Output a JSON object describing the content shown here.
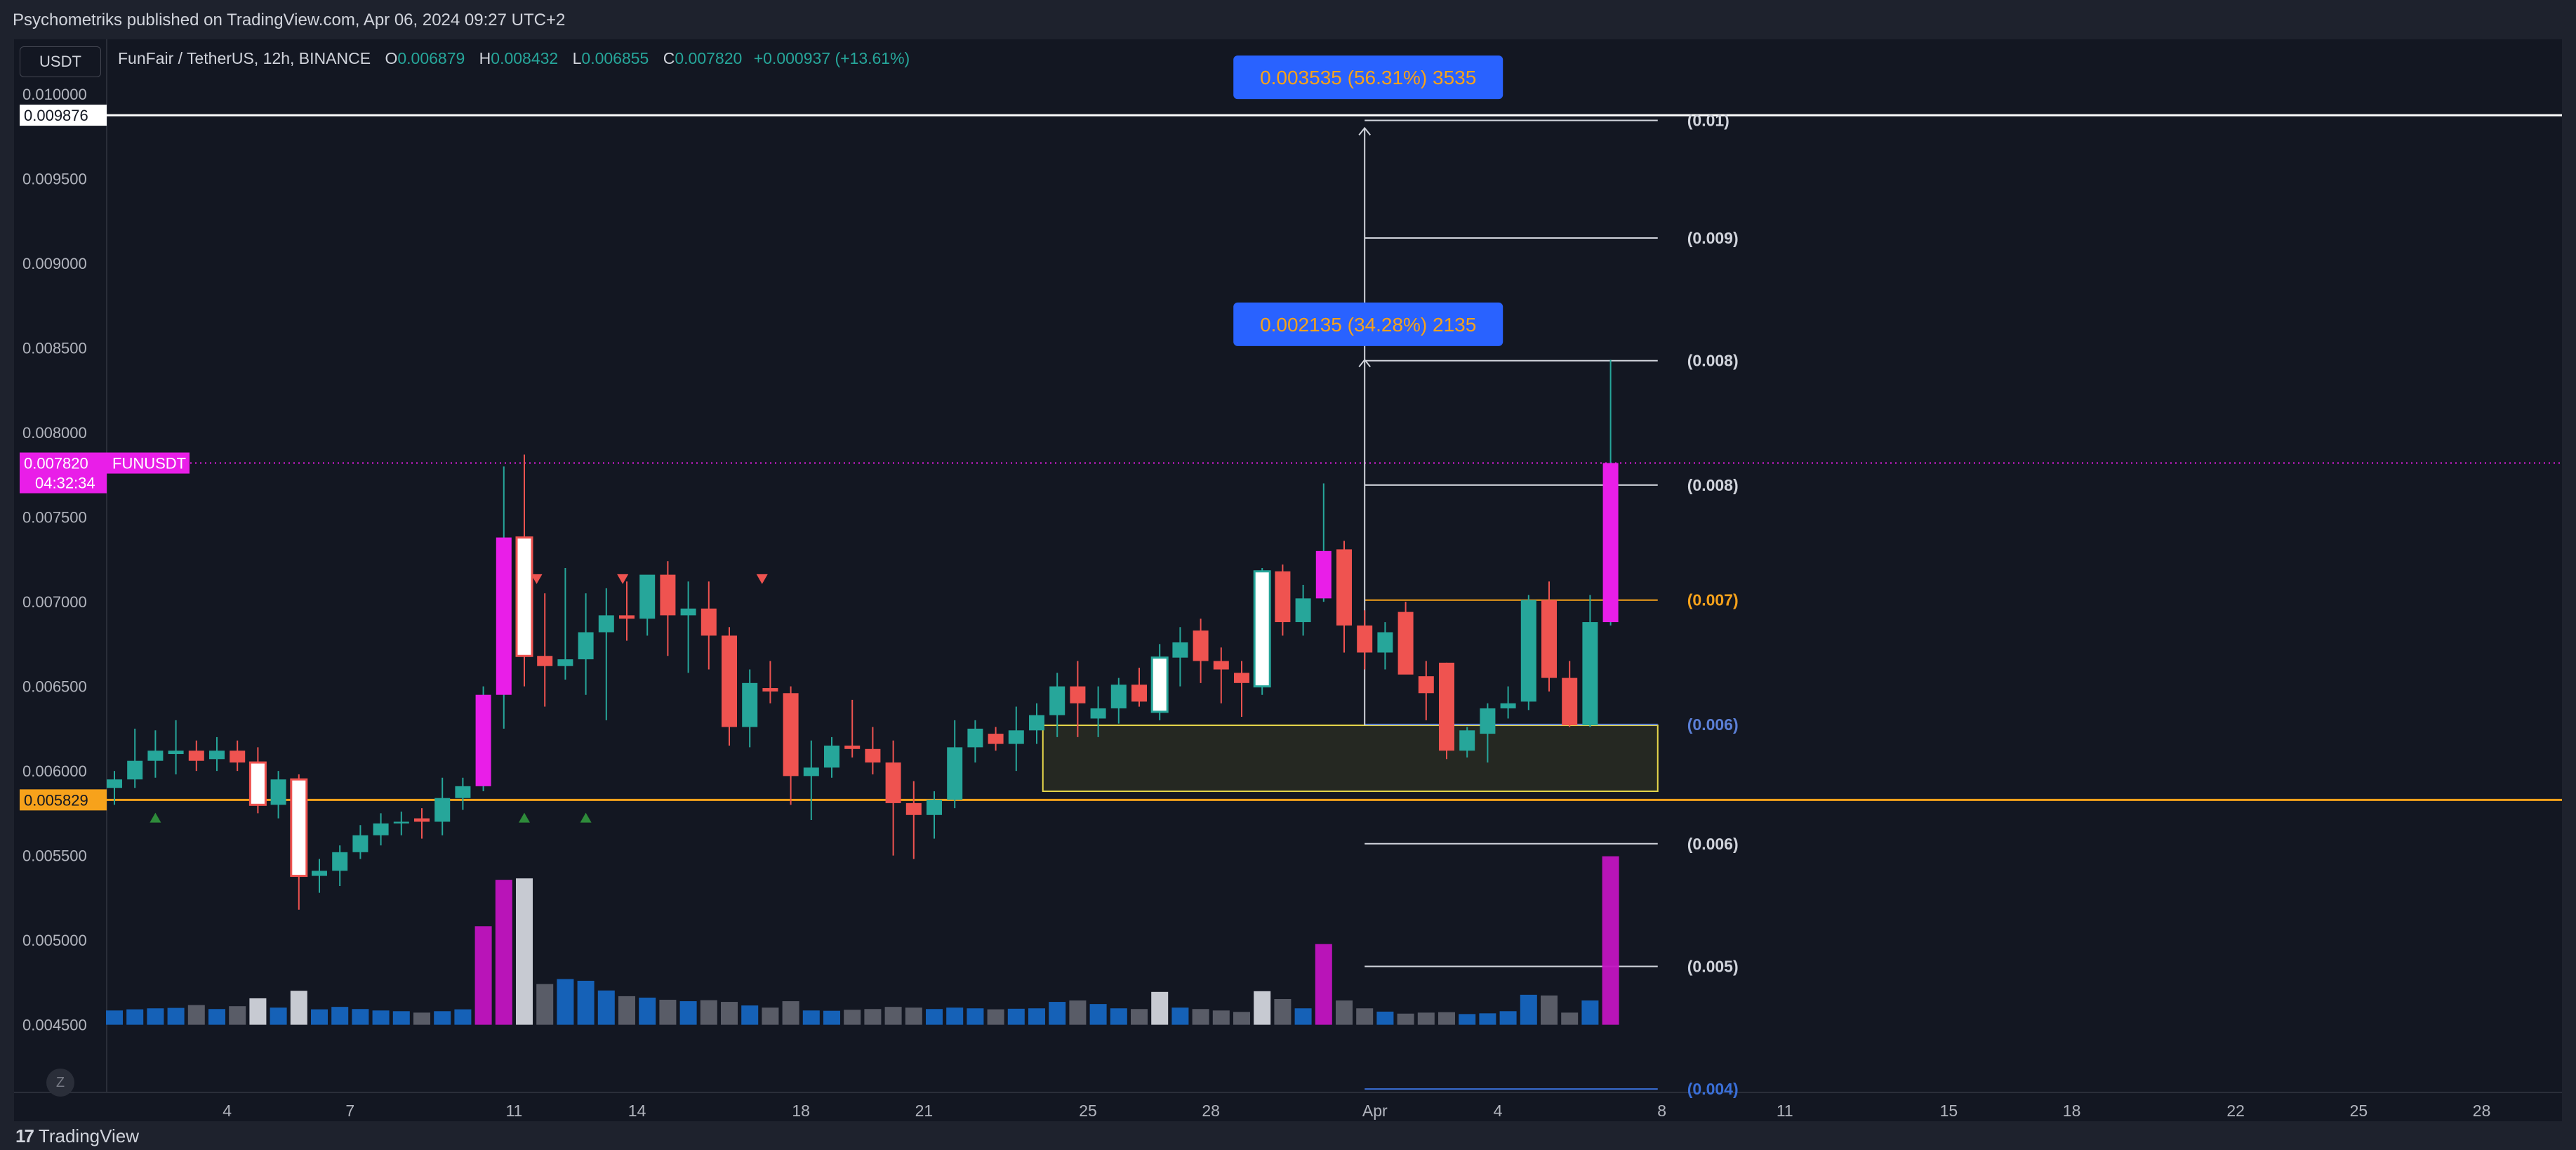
{
  "header": {
    "caption": "Psychometriks published on TradingView.com, Apr 06, 2024 09:27 UTC+2"
  },
  "legend": {
    "symbol": "FunFair / TetherUS, 12h, BINANCE",
    "open_label": "O",
    "open": "0.006879",
    "high_label": "H",
    "high": "0.008432",
    "low_label": "L",
    "low": "0.006855",
    "close_label": "C",
    "close": "0.007820",
    "change": "+0.000937 (+13.61%)"
  },
  "currency_tag": "USDT",
  "footer": {
    "brand": "TradingView"
  },
  "reset_button": "Z",
  "price_tags": {
    "top_line": "0.009876",
    "current_price": "0.007820",
    "current_symbol": "FUNUSDT",
    "countdown": "04:32:34",
    "support_line": "0.005829"
  },
  "measure_boxes": [
    {
      "text": "0.003535 (56.31%) 3535"
    },
    {
      "text": "0.002135 (34.28%) 2135"
    }
  ],
  "colors": {
    "up": "#26a69a",
    "down": "#ef5350",
    "volume_up": "#1565c0",
    "volume_down": "#5d606b",
    "highlight": "#e91ee8",
    "support": "#f7a21b",
    "current": "#e91ee8"
  },
  "chart_data": {
    "type": "candlestick",
    "timeframe": "12h",
    "ylim": [
      0.0041,
      0.0102
    ],
    "y_ticks": [
      "0.010000",
      "0.009500",
      "0.009000",
      "0.008500",
      "0.008000",
      "0.007500",
      "0.007000",
      "0.006500",
      "0.006000",
      "0.005500",
      "0.005000",
      "0.004500"
    ],
    "x_ticks": [
      {
        "label": "4",
        "idx": 5.5
      },
      {
        "label": "7",
        "idx": 11.5
      },
      {
        "label": "11",
        "idx": 19.5
      },
      {
        "label": "14",
        "idx": 25.5
      },
      {
        "label": "18",
        "idx": 33.5
      },
      {
        "label": "21",
        "idx": 39.5
      },
      {
        "label": "25",
        "idx": 47.5
      },
      {
        "label": "28",
        "idx": 53.5
      },
      {
        "label": "Apr",
        "idx": 61.5
      },
      {
        "label": "4",
        "idx": 67.5
      },
      {
        "label": "8",
        "idx": 75.5
      },
      {
        "label": "11",
        "idx": 81.5
      },
      {
        "label": "15",
        "idx": 89.5
      },
      {
        "label": "18",
        "idx": 95.5
      },
      {
        "label": "22",
        "idx": 103.5
      },
      {
        "label": "25",
        "idx": 109.5
      },
      {
        "label": "28",
        "idx": 115.5
      }
    ],
    "candles": [
      {
        "o": 0.0059,
        "h": 0.006,
        "l": 0.0058,
        "c": 0.00595,
        "v": 100
      },
      {
        "o": 0.00595,
        "h": 0.00625,
        "l": 0.0059,
        "c": 0.00606,
        "v": 108
      },
      {
        "o": 0.00606,
        "h": 0.00624,
        "l": 0.00596,
        "c": 0.00612,
        "v": 115
      },
      {
        "o": 0.0061,
        "h": 0.0063,
        "l": 0.00598,
        "c": 0.00612,
        "v": 118
      },
      {
        "o": 0.00612,
        "h": 0.00618,
        "l": 0.006,
        "c": 0.00606,
        "v": 138
      },
      {
        "o": 0.00607,
        "h": 0.0062,
        "l": 0.006,
        "c": 0.00612,
        "v": 110
      },
      {
        "o": 0.00612,
        "h": 0.00618,
        "l": 0.006,
        "c": 0.00605,
        "v": 130
      },
      {
        "o": 0.00605,
        "h": 0.00614,
        "l": 0.00575,
        "c": 0.0058,
        "v": 185,
        "hl": "white"
      },
      {
        "o": 0.0058,
        "h": 0.006,
        "l": 0.00572,
        "c": 0.00595,
        "v": 120
      },
      {
        "o": 0.00595,
        "h": 0.00598,
        "l": 0.00518,
        "c": 0.00538,
        "v": 238,
        "hl": "white"
      },
      {
        "o": 0.00538,
        "h": 0.00548,
        "l": 0.00528,
        "c": 0.00541,
        "v": 108
      },
      {
        "o": 0.00541,
        "h": 0.00556,
        "l": 0.00532,
        "c": 0.00552,
        "v": 125
      },
      {
        "o": 0.00552,
        "h": 0.00568,
        "l": 0.00548,
        "c": 0.00562,
        "v": 110
      },
      {
        "o": 0.00562,
        "h": 0.00575,
        "l": 0.00556,
        "c": 0.00569,
        "v": 100
      },
      {
        "o": 0.00569,
        "h": 0.00576,
        "l": 0.00562,
        "c": 0.0057,
        "v": 95
      },
      {
        "o": 0.00572,
        "h": 0.00578,
        "l": 0.0056,
        "c": 0.0057,
        "v": 85
      },
      {
        "o": 0.0057,
        "h": 0.00596,
        "l": 0.00562,
        "c": 0.00584,
        "v": 95
      },
      {
        "o": 0.00584,
        "h": 0.00596,
        "l": 0.00577,
        "c": 0.00591,
        "v": 108
      },
      {
        "o": 0.00591,
        "h": 0.0065,
        "l": 0.00588,
        "c": 0.00645,
        "v": 690,
        "hl": "magenta"
      },
      {
        "o": 0.00645,
        "h": 0.0078,
        "l": 0.00625,
        "c": 0.00738,
        "v": 1015,
        "hl": "magenta"
      },
      {
        "o": 0.00738,
        "h": 0.00787,
        "l": 0.0065,
        "c": 0.00668,
        "v": 1025,
        "hl": "white"
      },
      {
        "o": 0.00668,
        "h": 0.00705,
        "l": 0.00638,
        "c": 0.00662,
        "v": 285
      },
      {
        "o": 0.00662,
        "h": 0.0072,
        "l": 0.00654,
        "c": 0.00666,
        "v": 320
      },
      {
        "o": 0.00666,
        "h": 0.00705,
        "l": 0.00645,
        "c": 0.00682,
        "v": 308
      },
      {
        "o": 0.00682,
        "h": 0.00708,
        "l": 0.0063,
        "c": 0.00692,
        "v": 240
      },
      {
        "o": 0.00692,
        "h": 0.00712,
        "l": 0.00677,
        "c": 0.0069,
        "v": 200
      },
      {
        "o": 0.0069,
        "h": 0.0071,
        "l": 0.0068,
        "c": 0.00716,
        "v": 190
      },
      {
        "o": 0.00716,
        "h": 0.00724,
        "l": 0.00668,
        "c": 0.00692,
        "v": 175
      },
      {
        "o": 0.00692,
        "h": 0.00712,
        "l": 0.00658,
        "c": 0.00696,
        "v": 165
      },
      {
        "o": 0.00696,
        "h": 0.00712,
        "l": 0.0066,
        "c": 0.0068,
        "v": 172
      },
      {
        "o": 0.0068,
        "h": 0.00685,
        "l": 0.00615,
        "c": 0.00626,
        "v": 160
      },
      {
        "o": 0.00626,
        "h": 0.0066,
        "l": 0.00614,
        "c": 0.00652,
        "v": 135
      },
      {
        "o": 0.00649,
        "h": 0.00665,
        "l": 0.0064,
        "c": 0.00647,
        "v": 120
      },
      {
        "o": 0.00646,
        "h": 0.0065,
        "l": 0.0058,
        "c": 0.00597,
        "v": 165
      },
      {
        "o": 0.00597,
        "h": 0.00618,
        "l": 0.00571,
        "c": 0.00602,
        "v": 100
      },
      {
        "o": 0.00602,
        "h": 0.0062,
        "l": 0.00596,
        "c": 0.00615,
        "v": 98
      },
      {
        "o": 0.00615,
        "h": 0.00642,
        "l": 0.00608,
        "c": 0.00613,
        "v": 105
      },
      {
        "o": 0.00613,
        "h": 0.00626,
        "l": 0.00598,
        "c": 0.00605,
        "v": 110
      },
      {
        "o": 0.00605,
        "h": 0.00618,
        "l": 0.0055,
        "c": 0.00581,
        "v": 125
      },
      {
        "o": 0.00581,
        "h": 0.00594,
        "l": 0.00548,
        "c": 0.00574,
        "v": 120
      },
      {
        "o": 0.00574,
        "h": 0.00588,
        "l": 0.0056,
        "c": 0.00583,
        "v": 110
      },
      {
        "o": 0.00583,
        "h": 0.0063,
        "l": 0.00578,
        "c": 0.00614,
        "v": 120
      },
      {
        "o": 0.00614,
        "h": 0.0063,
        "l": 0.00605,
        "c": 0.00625,
        "v": 115
      },
      {
        "o": 0.00622,
        "h": 0.00626,
        "l": 0.00612,
        "c": 0.00616,
        "v": 108
      },
      {
        "o": 0.00616,
        "h": 0.00638,
        "l": 0.006,
        "c": 0.00624,
        "v": 112
      },
      {
        "o": 0.00624,
        "h": 0.0064,
        "l": 0.00616,
        "c": 0.00633,
        "v": 115
      },
      {
        "o": 0.00633,
        "h": 0.00658,
        "l": 0.0062,
        "c": 0.0065,
        "v": 160
      },
      {
        "o": 0.0065,
        "h": 0.00665,
        "l": 0.0062,
        "c": 0.0064,
        "v": 170
      },
      {
        "o": 0.00631,
        "h": 0.0065,
        "l": 0.0062,
        "c": 0.00637,
        "v": 145
      },
      {
        "o": 0.00637,
        "h": 0.00655,
        "l": 0.00628,
        "c": 0.00651,
        "v": 115
      },
      {
        "o": 0.00651,
        "h": 0.00661,
        "l": 0.00638,
        "c": 0.00641,
        "v": 110
      },
      {
        "o": 0.00635,
        "h": 0.00675,
        "l": 0.0063,
        "c": 0.00667,
        "v": 230,
        "hl": "white"
      },
      {
        "o": 0.00667,
        "h": 0.00685,
        "l": 0.0065,
        "c": 0.00676,
        "v": 120
      },
      {
        "o": 0.00683,
        "h": 0.0069,
        "l": 0.00652,
        "c": 0.00665,
        "v": 110
      },
      {
        "o": 0.00665,
        "h": 0.00673,
        "l": 0.0064,
        "c": 0.0066,
        "v": 100
      },
      {
        "o": 0.00658,
        "h": 0.00665,
        "l": 0.00632,
        "c": 0.00652,
        "v": 90
      },
      {
        "o": 0.0065,
        "h": 0.0072,
        "l": 0.00645,
        "c": 0.00718,
        "v": 235,
        "hl": "white"
      },
      {
        "o": 0.00718,
        "h": 0.00722,
        "l": 0.0068,
        "c": 0.00688,
        "v": 180
      },
      {
        "o": 0.00688,
        "h": 0.0071,
        "l": 0.0068,
        "c": 0.00702,
        "v": 115
      },
      {
        "o": 0.00702,
        "h": 0.0077,
        "l": 0.007,
        "c": 0.0073,
        "v": 565,
        "hl": "magenta"
      },
      {
        "o": 0.00731,
        "h": 0.00736,
        "l": 0.0067,
        "c": 0.00686,
        "v": 170
      },
      {
        "o": 0.00686,
        "h": 0.00695,
        "l": 0.0066,
        "c": 0.0067,
        "v": 115
      },
      {
        "o": 0.0067,
        "h": 0.00688,
        "l": 0.0066,
        "c": 0.00682,
        "v": 92
      },
      {
        "o": 0.00694,
        "h": 0.007,
        "l": 0.00658,
        "c": 0.00657,
        "v": 78
      },
      {
        "o": 0.00656,
        "h": 0.00665,
        "l": 0.0063,
        "c": 0.00646,
        "v": 85
      },
      {
        "o": 0.00664,
        "h": 0.00664,
        "l": 0.00607,
        "c": 0.00612,
        "v": 88
      },
      {
        "o": 0.00612,
        "h": 0.00626,
        "l": 0.00608,
        "c": 0.00624,
        "v": 75
      },
      {
        "o": 0.00622,
        "h": 0.0064,
        "l": 0.00605,
        "c": 0.00637,
        "v": 80
      },
      {
        "o": 0.00637,
        "h": 0.0065,
        "l": 0.00631,
        "c": 0.0064,
        "v": 95
      },
      {
        "o": 0.00641,
        "h": 0.00704,
        "l": 0.00636,
        "c": 0.00701,
        "v": 210
      },
      {
        "o": 0.00701,
        "h": 0.00712,
        "l": 0.00647,
        "c": 0.00655,
        "v": 205
      },
      {
        "o": 0.00655,
        "h": 0.00665,
        "l": 0.00626,
        "c": 0.00627,
        "v": 85
      },
      {
        "o": 0.00627,
        "h": 0.00704,
        "l": 0.00626,
        "c": 0.00688,
        "v": 170
      },
      {
        "o": 0.00688,
        "h": 0.00843,
        "l": 0.00686,
        "c": 0.00782,
        "v": 1180,
        "hl": "magenta"
      }
    ],
    "triangles_down": [
      20.6,
      24.8,
      31.6
    ],
    "triangles_up": [
      2,
      20,
      23
    ],
    "lines": {
      "top_line": 0.009876,
      "current_price": 0.00782,
      "support_line": 0.005829
    },
    "measure_vertical": {
      "x_idx": 61,
      "from": 0.00627,
      "to": 0.0098
    },
    "measure_vertical2": {
      "x_idx": 61,
      "from": 0.00627,
      "to": 0.00843
    },
    "zone_box": {
      "x_from_idx": 45.3,
      "x_to_idx": 75.3,
      "from": 0.00588,
      "to": 0.00627
    },
    "fib_levels": [
      {
        "label": "(0.01)",
        "value": 0.009845,
        "color": "#d1d4dc"
      },
      {
        "label": "(0.009)",
        "value": 0.00915,
        "color": "#d1d4dc"
      },
      {
        "label": "(0.008)",
        "value": 0.008425,
        "color": "#d1d4dc"
      },
      {
        "label": "(0.008)",
        "value": 0.00769,
        "color": "#d1d4dc"
      },
      {
        "label": "(0.007)",
        "value": 0.00701,
        "color": "#f7a21b"
      },
      {
        "label": "(0.006)",
        "value": 0.006275,
        "color": "#5b7fd6"
      },
      {
        "label": "(0.006)",
        "value": 0.00557,
        "color": "#d1d4dc"
      },
      {
        "label": "(0.005)",
        "value": 0.004845,
        "color": "#d1d4dc"
      },
      {
        "label": "(0.004)",
        "value": 0.00412,
        "color": "#3a6fd8"
      }
    ]
  }
}
